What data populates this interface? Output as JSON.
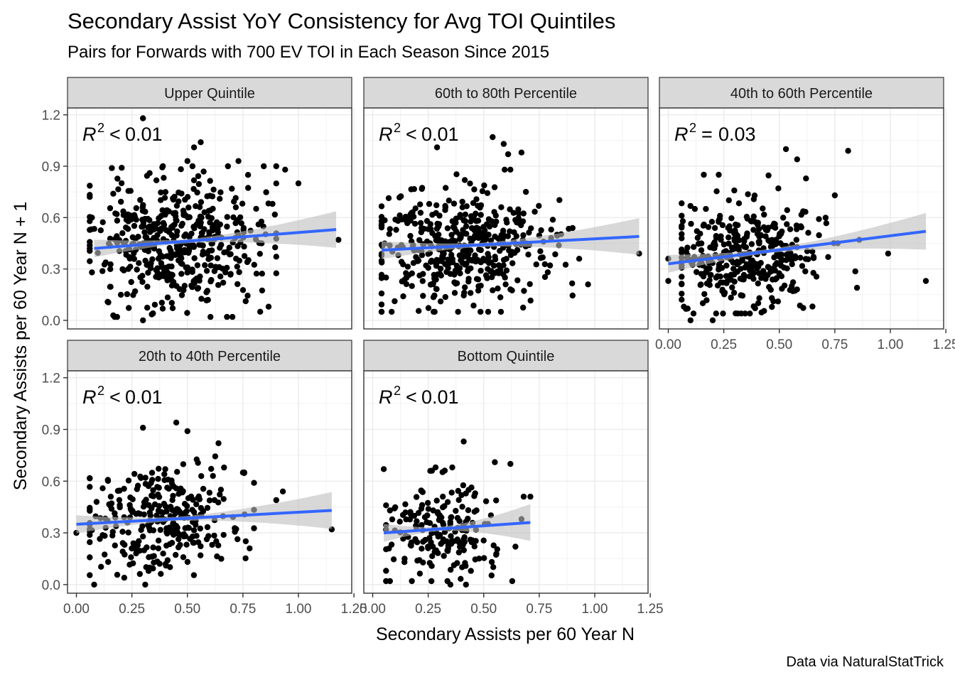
{
  "title": "Secondary Assist YoY Consistency for Avg TOI Quintiles",
  "subtitle": "Pairs for Forwards with 700 EV TOI in Each Season Since 2015",
  "caption": "Data via NaturalStatTrick",
  "chart_data": {
    "type": "scatter",
    "xlabel": "Secondary Assists per 60 Year N",
    "ylabel": "Secondary Assists per 60 Year N + 1",
    "xlim": [
      -0.04,
      1.24
    ],
    "ylim": [
      -0.05,
      1.24
    ],
    "xticks": [
      0.0,
      0.25,
      0.5,
      0.75,
      1.0,
      1.25
    ],
    "xtick_labels": [
      "0.00",
      "0.25",
      "0.50",
      "0.75",
      "1.00",
      "1.25"
    ],
    "yticks": [
      0.0,
      0.3,
      0.6,
      0.9,
      1.2
    ],
    "ytick_labels": [
      "0.0",
      "0.3",
      "0.6",
      "0.9",
      "1.2"
    ],
    "grid": true,
    "colors": {
      "points": "#000000",
      "fit": "#3366FF",
      "band": "#BEBEBE",
      "strip": "#D9D9D9"
    },
    "facets": [
      {
        "name": "Upper Quintile",
        "r2_rel": "<",
        "r2_val": "0.01",
        "fit": {
          "x0": 0.08,
          "x1": 1.17,
          "y0": 0.42,
          "y1": 0.53
        },
        "highlights": [
          [
            0.3,
            1.18
          ],
          [
            0.56,
            1.04
          ],
          [
            0.53,
            1.01
          ],
          [
            0.5,
            0.93
          ],
          [
            0.73,
            0.93
          ],
          [
            0.94,
            0.88
          ],
          [
            1.0,
            0.8
          ],
          [
            1.18,
            0.47
          ],
          [
            0.3,
            0.0
          ],
          [
            0.07,
            0.28
          ],
          [
            0.07,
            0.6
          ],
          [
            0.82,
            0.56
          ]
        ],
        "cloud": {
          "n": 480,
          "mx": 0.45,
          "sx": 0.19,
          "my": 0.46,
          "sy": 0.19,
          "xmin": 0.06,
          "xmax": 0.9,
          "ymin": 0.02,
          "ymax": 0.9,
          "seed": 11
        }
      },
      {
        "name": "60th to 80th Percentile",
        "r2_rel": "<",
        "r2_val": "0.01",
        "fit": {
          "x0": 0.04,
          "x1": 1.2,
          "y0": 0.41,
          "y1": 0.49
        },
        "highlights": [
          [
            0.29,
            1.01
          ],
          [
            0.54,
            1.07
          ],
          [
            0.59,
            1.03
          ],
          [
            0.61,
            0.97
          ],
          [
            0.67,
            0.98
          ],
          [
            0.69,
            0.75
          ],
          [
            1.2,
            0.39
          ],
          [
            0.97,
            0.21
          ],
          [
            0.04,
            0.58
          ],
          [
            0.06,
            0.25
          ],
          [
            0.93,
            0.36
          ],
          [
            0.83,
            0.5
          ]
        ],
        "cloud": {
          "n": 440,
          "mx": 0.38,
          "sx": 0.19,
          "my": 0.42,
          "sy": 0.17,
          "xmin": 0.04,
          "xmax": 0.9,
          "ymin": 0.05,
          "ymax": 0.88,
          "seed": 23
        }
      },
      {
        "name": "40th to 60th Percentile",
        "r2_rel": "=",
        "r2_val": "0.03",
        "fit": {
          "x0": 0.0,
          "x1": 1.16,
          "y0": 0.33,
          "y1": 0.52
        },
        "highlights": [
          [
            0.53,
            1.0
          ],
          [
            0.81,
            0.99
          ],
          [
            1.16,
            0.23
          ],
          [
            0.1,
            0.0
          ],
          [
            0.2,
            0.0
          ],
          [
            0.0,
            0.23
          ],
          [
            0.0,
            0.36
          ],
          [
            0.07,
            0.08
          ],
          [
            0.99,
            0.39
          ],
          [
            0.86,
            0.47
          ],
          [
            0.75,
            0.73
          ],
          [
            0.58,
            0.94
          ]
        ],
        "cloud": {
          "n": 380,
          "mx": 0.36,
          "sx": 0.17,
          "my": 0.38,
          "sy": 0.16,
          "xmin": 0.06,
          "xmax": 0.85,
          "ymin": 0.04,
          "ymax": 0.85,
          "seed": 37
        }
      },
      {
        "name": "20th to 40th Percentile",
        "r2_rel": "<",
        "r2_val": "0.01",
        "fit": {
          "x0": 0.0,
          "x1": 1.15,
          "y0": 0.35,
          "y1": 0.43
        },
        "highlights": [
          [
            0.3,
            0.91
          ],
          [
            0.45,
            0.94
          ],
          [
            0.5,
            0.89
          ],
          [
            0.64,
            0.82
          ],
          [
            0.93,
            0.54
          ],
          [
            0.9,
            0.49
          ],
          [
            1.15,
            0.32
          ],
          [
            0.08,
            0.0
          ],
          [
            0.31,
            0.0
          ],
          [
            0.0,
            0.3
          ],
          [
            0.75,
            0.65
          ],
          [
            0.78,
            0.21
          ]
        ],
        "cloud": {
          "n": 300,
          "mx": 0.37,
          "sx": 0.17,
          "my": 0.38,
          "sy": 0.15,
          "xmin": 0.06,
          "xmax": 0.8,
          "ymin": 0.04,
          "ymax": 0.78,
          "seed": 53
        }
      },
      {
        "name": "Bottom Quintile",
        "r2_rel": "<",
        "r2_val": "0.01",
        "fit": {
          "x0": 0.05,
          "x1": 0.71,
          "y0": 0.3,
          "y1": 0.36
        },
        "highlights": [
          [
            0.41,
            0.83
          ],
          [
            0.05,
            0.67
          ],
          [
            0.62,
            0.7
          ],
          [
            0.71,
            0.51
          ],
          [
            0.68,
            0.51
          ],
          [
            0.35,
            0.0
          ],
          [
            0.42,
            0.0
          ],
          [
            0.06,
            0.08
          ],
          [
            0.67,
            0.38
          ],
          [
            0.55,
            0.71
          ]
        ],
        "cloud": {
          "n": 190,
          "mx": 0.32,
          "sx": 0.14,
          "my": 0.32,
          "sy": 0.15,
          "xmin": 0.06,
          "xmax": 0.66,
          "ymin": 0.02,
          "ymax": 0.68,
          "seed": 71
        }
      }
    ]
  }
}
